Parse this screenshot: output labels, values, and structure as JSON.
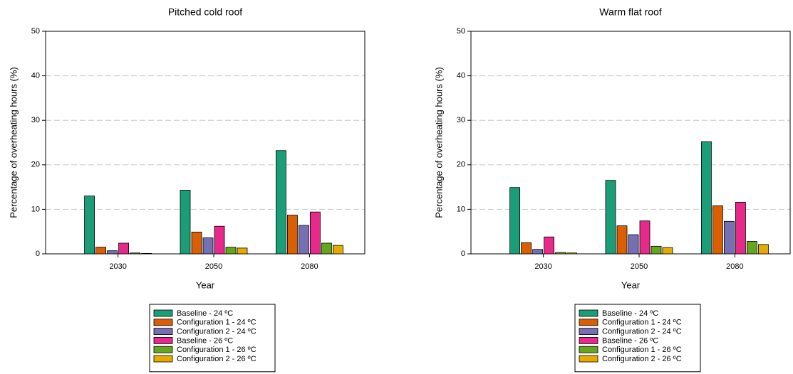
{
  "chart_data": [
    {
      "type": "bar",
      "title": "Pitched cold roof",
      "x_label": "Year",
      "y_label": "Percentage of overheating hours (%)",
      "categories": [
        "2030",
        "2050",
        "2080"
      ],
      "series": [
        {
          "name": "Baseline - 24 ºC",
          "color": "#1b9e77",
          "values": [
            13,
            14.3,
            23.2
          ]
        },
        {
          "name": "Configuration 1 - 24 ºC",
          "color": "#d95f02",
          "values": [
            1.5,
            4.9,
            8.7
          ]
        },
        {
          "name": "Configuration 2 - 24 ºC",
          "color": "#7570b3",
          "values": [
            0.7,
            3.6,
            6.4
          ]
        },
        {
          "name": "Baseline - 26 ºC",
          "color": "#e7298a",
          "values": [
            2.4,
            6.2,
            9.4
          ]
        },
        {
          "name": "Configuration 1 - 26 ºC",
          "color": "#66a61e",
          "values": [
            0.2,
            1.5,
            2.4
          ]
        },
        {
          "name": "Configuration 2 - 26 ºC",
          "color": "#e6ab02",
          "values": [
            0.1,
            1.3,
            1.9
          ]
        }
      ],
      "ylim": [
        0,
        50
      ],
      "yticks": [
        0,
        10,
        20,
        30,
        40,
        50
      ],
      "grid": true
    },
    {
      "type": "bar",
      "title": "Warm flat roof",
      "x_label": "Year",
      "y_label": "Percentage of overheating hours (%)",
      "categories": [
        "2030",
        "2050",
        "2080"
      ],
      "series": [
        {
          "name": "Baseline - 24 ºC",
          "color": "#1b9e77",
          "values": [
            14.9,
            16.5,
            25.2
          ]
        },
        {
          "name": "Configuration 1 - 24 ºC",
          "color": "#d95f02",
          "values": [
            2.5,
            6.3,
            10.8
          ]
        },
        {
          "name": "Configuration 2 - 24 ºC",
          "color": "#7570b3",
          "values": [
            1.0,
            4.3,
            7.3
          ]
        },
        {
          "name": "Baseline - 26 ºC",
          "color": "#e7298a",
          "values": [
            3.8,
            7.4,
            11.6
          ]
        },
        {
          "name": "Configuration 1 - 26 ºC",
          "color": "#66a61e",
          "values": [
            0.3,
            1.7,
            2.8
          ]
        },
        {
          "name": "Configuration 2 - 26 ºC",
          "color": "#e6ab02",
          "values": [
            0.2,
            1.4,
            2.1
          ]
        }
      ],
      "ylim": [
        0,
        50
      ],
      "yticks": [
        0,
        10,
        20,
        30,
        40,
        50
      ],
      "grid": true
    }
  ]
}
